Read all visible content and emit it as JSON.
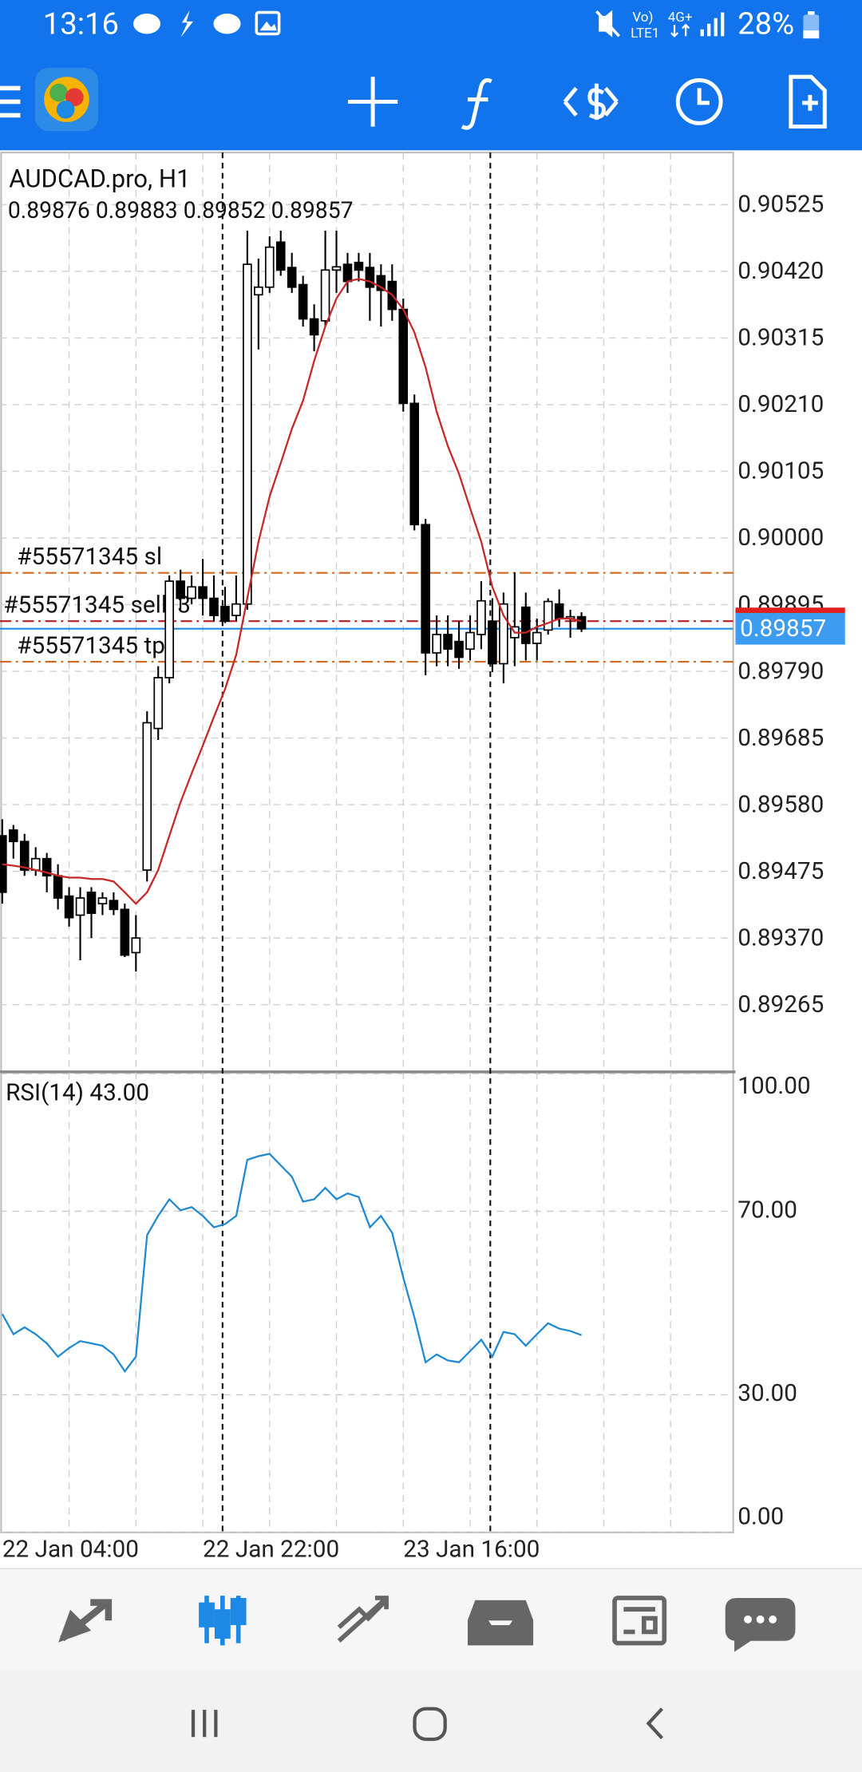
{
  "status_bar": {
    "time": "13:16",
    "network_top": "Vo)",
    "network_bottom": "LTE1",
    "network_type": "4G+",
    "battery": "28%"
  },
  "chart_data": {
    "type": "candlestick",
    "title": "AUDCAD.pro, H1",
    "categories": [
      "22 Jan 04:00",
      null,
      null,
      null,
      null,
      null,
      null,
      null,
      null,
      null,
      null,
      null,
      null,
      null,
      null,
      null,
      null,
      null,
      "22 Jan 22:00",
      null,
      null,
      null,
      null,
      null,
      null,
      null,
      null,
      null,
      null,
      null,
      null,
      null,
      null,
      null,
      null,
      null,
      "23 Jan 16:00",
      null,
      null,
      null,
      null,
      null,
      null,
      null,
      null,
      null,
      null,
      null,
      null,
      null,
      null,
      null,
      null
    ],
    "ylim": [
      0.8916,
      0.90607
    ],
    "yticks": [
      0.90525,
      {
        "value": 0.9042,
        "label": "0.90420"
      },
      0.90315,
      {
        "value": 0.9021,
        "label": "0.90210"
      },
      0.90105,
      {
        "value": 0.9,
        "label": "0.90000"
      },
      0.89895,
      {
        "value": 0.8979,
        "label": "0.89790"
      },
      0.89685,
      {
        "value": 0.8958,
        "label": "0.89580"
      },
      0.89475,
      {
        "value": 0.8937,
        "label": "0.89370"
      },
      0.89265
    ],
    "grid": true,
    "open": [
      0.89531,
      0.8954,
      0.89522,
      0.89477,
      0.89495,
      0.89468,
      0.89436,
      0.89406,
      0.89442,
      0.89424,
      0.89429,
      0.89415,
      0.89347,
      0.89477,
      0.897,
      0.8978,
      0.89932,
      0.89905,
      0.89923,
      0.89905,
      0.89892,
      0.89878,
      0.89896,
      0.90383,
      0.90395,
      0.90466,
      0.90426,
      0.90399,
      0.90345,
      0.90342,
      0.90422,
      0.90431,
      0.90434,
      0.90426,
      0.90413,
      0.90404,
      0.9036,
      0.90212,
      0.90021,
      0.89819,
      0.89848,
      0.89837,
      0.89825,
      0.89848,
      0.89869,
      0.89802,
      0.89843,
      0.89891,
      0.89834,
      0.89855,
      0.89896,
      0.89873,
      0.89876
    ],
    "high": [
      0.89557,
      0.89548,
      0.89534,
      0.89513,
      0.89504,
      0.89486,
      0.8945,
      0.8945,
      0.8945,
      0.89442,
      0.89442,
      0.89424,
      0.89406,
      0.89727,
      0.89798,
      0.89941,
      0.8995,
      0.89941,
      0.89967,
      0.89941,
      0.89923,
      0.89941,
      0.90484,
      0.9044,
      0.90475,
      0.90484,
      0.90449,
      0.90413,
      0.90368,
      0.90484,
      0.90484,
      0.90449,
      0.90449,
      0.90449,
      0.90431,
      0.90431,
      0.90377,
      0.90226,
      0.9003,
      0.89878,
      0.89878,
      0.89869,
      0.89878,
      0.89932,
      0.89905,
      0.89914,
      0.89946,
      0.89914,
      0.89873,
      0.89905,
      0.89919,
      0.89887,
      0.89883
    ],
    "low": [
      0.89424,
      0.89495,
      0.89468,
      0.89468,
      0.89442,
      0.89415,
      0.89388,
      0.89335,
      0.8937,
      0.89406,
      0.89406,
      0.8934,
      0.89317,
      0.89459,
      0.89682,
      0.89771,
      0.89887,
      0.89896,
      0.89878,
      0.89869,
      0.89866,
      0.89869,
      0.89887,
      0.90297,
      0.90386,
      0.90413,
      0.90386,
      0.90333,
      0.90294,
      0.90333,
      0.90386,
      0.90386,
      0.90404,
      0.90342,
      0.90333,
      0.90342,
      0.90199,
      0.90012,
      0.89784,
      0.89798,
      0.89798,
      0.89794,
      0.89807,
      0.89825,
      0.89789,
      0.89771,
      0.89798,
      0.89807,
      0.89807,
      0.89848,
      0.8986,
      0.89843,
      0.89852
    ],
    "close": [
      0.89442,
      0.89522,
      0.89477,
      0.89495,
      0.89468,
      0.89433,
      0.89402,
      0.89433,
      0.89409,
      0.89433,
      0.89415,
      0.89343,
      0.8937,
      0.89709,
      0.8978,
      0.89932,
      0.89905,
      0.89923,
      0.89905,
      0.89878,
      0.89869,
      0.89896,
      0.90431,
      0.90395,
      0.90458,
      0.90422,
      0.90395,
      0.90345,
      0.9032,
      0.90422,
      0.90427,
      0.90404,
      0.90422,
      0.90395,
      0.9039,
      0.9036,
      0.90212,
      0.90021,
      0.89819,
      0.89848,
      0.89825,
      0.89812,
      0.89851,
      0.89901,
      0.89802,
      0.89896,
      0.8986,
      0.89834,
      0.89851,
      0.899,
      0.89873,
      0.89876,
      0.89857
    ],
    "ma": {
      "color": "#c62828",
      "values": [
        0.89486,
        0.89484,
        0.89481,
        0.89477,
        0.89473,
        0.89468,
        0.89465,
        0.89465,
        0.89463,
        0.89463,
        0.89459,
        0.89442,
        0.89424,
        0.89442,
        0.89477,
        0.89531,
        0.89584,
        0.89629,
        0.89673,
        0.89718,
        0.89762,
        0.89816,
        0.89905,
        0.89994,
        0.90065,
        0.90118,
        0.90172,
        0.90216,
        0.90279,
        0.90333,
        0.90377,
        0.90404,
        0.90408,
        0.90404,
        0.90395,
        0.90383,
        0.9036,
        0.90324,
        0.90269,
        0.90199,
        0.90145,
        0.90101,
        0.90047,
        0.89994,
        0.89923,
        0.89878,
        0.89851,
        0.89851,
        0.8986,
        0.89866,
        0.89873,
        0.89873,
        0.89869
      ]
    },
    "orders": [
      {
        "label": "#55571345 sl",
        "price": 0.89945,
        "color": "#d2691e"
      },
      {
        "label": "#55571345 sell, 3",
        "price": 0.89869,
        "color": "#b71c1c"
      },
      {
        "label": "#55571345 tp",
        "price": 0.89805,
        "color": "#d2691e"
      }
    ],
    "ask": 0.89885,
    "rsi": {
      "name": "RSI(14)",
      "last_label": "43.00",
      "color": "#1f8ad2",
      "ylim": [
        0,
        100
      ],
      "yticks": [
        {
          "value": 100,
          "label": "100.00"
        },
        {
          "value": 70,
          "label": "70.00"
        },
        {
          "value": 30,
          "label": "30.00"
        },
        {
          "value": 0,
          "label": "0.00"
        }
      ],
      "values": [
        47.6,
        43.2,
        44.7,
        43.2,
        41.2,
        38.3,
        40.2,
        41.7,
        41.2,
        40.7,
        38.8,
        35.1,
        38.3,
        64.8,
        69.0,
        72.6,
        70.2,
        70.9,
        69.0,
        66.5,
        67.2,
        69.0,
        81.2,
        82.0,
        82.5,
        80.0,
        77.5,
        72.1,
        72.6,
        75.1,
        72.6,
        73.9,
        73.1,
        66.5,
        69.0,
        65.3,
        55.5,
        46.9,
        37.1,
        38.8,
        37.5,
        37.1,
        39.5,
        42.0,
        38.3,
        43.7,
        43.2,
        40.7,
        43.2,
        45.6,
        44.4,
        43.9,
        43.0
      ]
    }
  }
}
